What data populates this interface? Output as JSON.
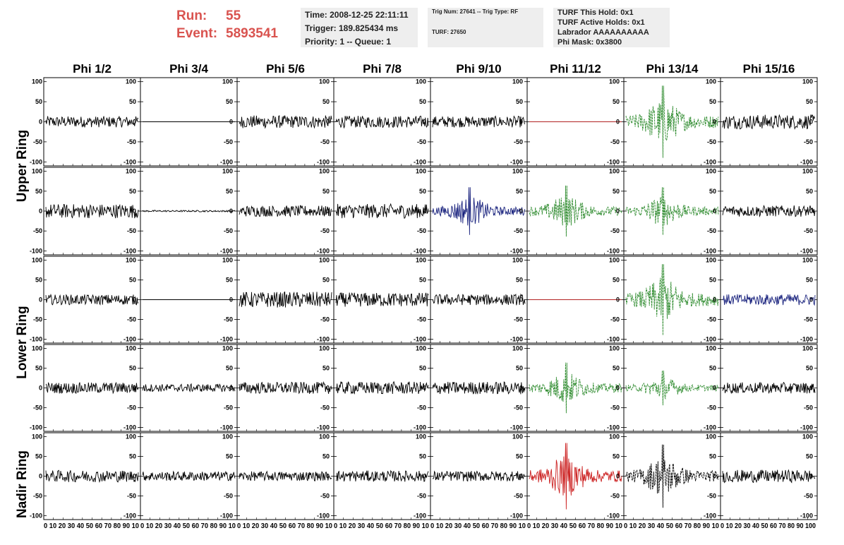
{
  "header": {
    "run_label": "Run:",
    "run_value": "55",
    "event_label": "Event:",
    "event_value": "5893541"
  },
  "info_left": {
    "time": "Time: 2008-12-25 22:11:11",
    "trigger": "Trigger: 189.825434 ms",
    "priority": "Priority: 1 -- Queue: 1"
  },
  "info_mid": {
    "trig": "Trig Num: 27641 -- Trig Type: RF",
    "turf": "TURF: 27650"
  },
  "info_right": {
    "hold": "TURF This Hold: 0x1",
    "active": "TURF Active Holds: 0x1",
    "labrador": "Labrador AAAAAAAAAA",
    "mask": "Phi Mask: 0x3800"
  },
  "columns": [
    "Phi 1/2",
    "Phi 3/4",
    "Phi 5/6",
    "Phi 7/8",
    "Phi 9/10",
    "Phi 11/12",
    "Phi 13/14",
    "Phi 15/16"
  ],
  "rings": [
    "Upper Ring",
    "Lower Ring",
    "Nadir Ring"
  ],
  "colors": {
    "normal": "#000000",
    "blue": "#1a237e",
    "green": "#2e8b2e",
    "red": "#cc2222",
    "flat_red": "#b22222"
  },
  "chart_data": {
    "type": "line",
    "description_layout": "8 columns x 5 rows of waveform panels",
    "x_range": [
      0,
      100
    ],
    "y_range": [
      -110,
      110
    ],
    "y_ticks": [
      100,
      50,
      0,
      -50,
      -100
    ],
    "x_ticks": [
      0,
      10,
      20,
      30,
      40,
      50,
      60,
      70,
      80,
      90,
      100
    ],
    "x_tick_labels_bottom": [
      "0 10 20 30 40 50 60 70 80 90 10",
      "0 10 20 30 40 50 60 70 80 90 10",
      "0 10 20 30 40 50 60 70 80 90 10",
      "0 10 20 30 40 50 60 70 80 90 10",
      "0 10 20 30 40 50 60 70 80 90 10",
      "0 10 20 30 40 50 60 70 80 90 10",
      "0 10 20 30 40 50 60 70 80 90 10",
      "0 10 20 30 40 50 60 70 80 90 100"
    ],
    "panels": [
      [
        {
          "style": "noise",
          "color": "normal",
          "amp": 14
        },
        {
          "style": "flat",
          "color": "normal",
          "amp": 0
        },
        {
          "style": "noise",
          "color": "normal",
          "amp": 16
        },
        {
          "style": "noise",
          "color": "normal",
          "amp": 15
        },
        {
          "style": "noise",
          "color": "normal",
          "amp": 14
        },
        {
          "style": "flat",
          "color": "flat_red",
          "amp": 0
        },
        {
          "style": "burst",
          "color": "green",
          "amp": 45,
          "dashed": true
        },
        {
          "style": "noise",
          "color": "normal",
          "amp": 18
        }
      ],
      [
        {
          "style": "noise",
          "color": "normal",
          "amp": 18
        },
        {
          "style": "noise",
          "color": "normal",
          "amp": 2
        },
        {
          "style": "noise",
          "color": "normal",
          "amp": 14
        },
        {
          "style": "noise",
          "color": "normal",
          "amp": 18
        },
        {
          "style": "burst",
          "color": "blue",
          "amp": 30
        },
        {
          "style": "burst",
          "color": "green",
          "amp": 32,
          "dashed": true
        },
        {
          "style": "burst",
          "color": "green",
          "amp": 30,
          "dashed": true
        },
        {
          "style": "noise",
          "color": "normal",
          "amp": 14
        }
      ],
      [
        {
          "style": "noise",
          "color": "normal",
          "amp": 13
        },
        {
          "style": "flat",
          "color": "normal",
          "amp": 0
        },
        {
          "style": "noise",
          "color": "normal",
          "amp": 20
        },
        {
          "style": "noise",
          "color": "normal",
          "amp": 18
        },
        {
          "style": "noise",
          "color": "normal",
          "amp": 14
        },
        {
          "style": "flat",
          "color": "flat_red",
          "amp": 0
        },
        {
          "style": "burst",
          "color": "green",
          "amp": 45,
          "dashed": true
        },
        {
          "style": "noise",
          "color": "blue",
          "amp": 14
        }
      ],
      [
        {
          "style": "noise",
          "color": "normal",
          "amp": 14
        },
        {
          "style": "noise",
          "color": "normal",
          "amp": 10
        },
        {
          "style": "noise",
          "color": "normal",
          "amp": 15
        },
        {
          "style": "noise",
          "color": "normal",
          "amp": 16
        },
        {
          "style": "noise",
          "color": "normal",
          "amp": 16
        },
        {
          "style": "burst",
          "color": "green",
          "amp": 32,
          "dashed": true
        },
        {
          "style": "burst",
          "color": "green",
          "amp": 22,
          "dashed": true
        },
        {
          "style": "noise",
          "color": "normal",
          "amp": 14
        }
      ],
      [
        {
          "style": "noise",
          "color": "normal",
          "amp": 15
        },
        {
          "style": "noise",
          "color": "normal",
          "amp": 12
        },
        {
          "style": "noise",
          "color": "normal",
          "amp": 12
        },
        {
          "style": "noise",
          "color": "normal",
          "amp": 14
        },
        {
          "style": "noise",
          "color": "normal",
          "amp": 13
        },
        {
          "style": "burst",
          "color": "red",
          "amp": 42
        },
        {
          "style": "burst",
          "color": "normal",
          "amp": 40,
          "dashed": true
        },
        {
          "style": "noise",
          "color": "normal",
          "amp": 16
        }
      ]
    ]
  }
}
